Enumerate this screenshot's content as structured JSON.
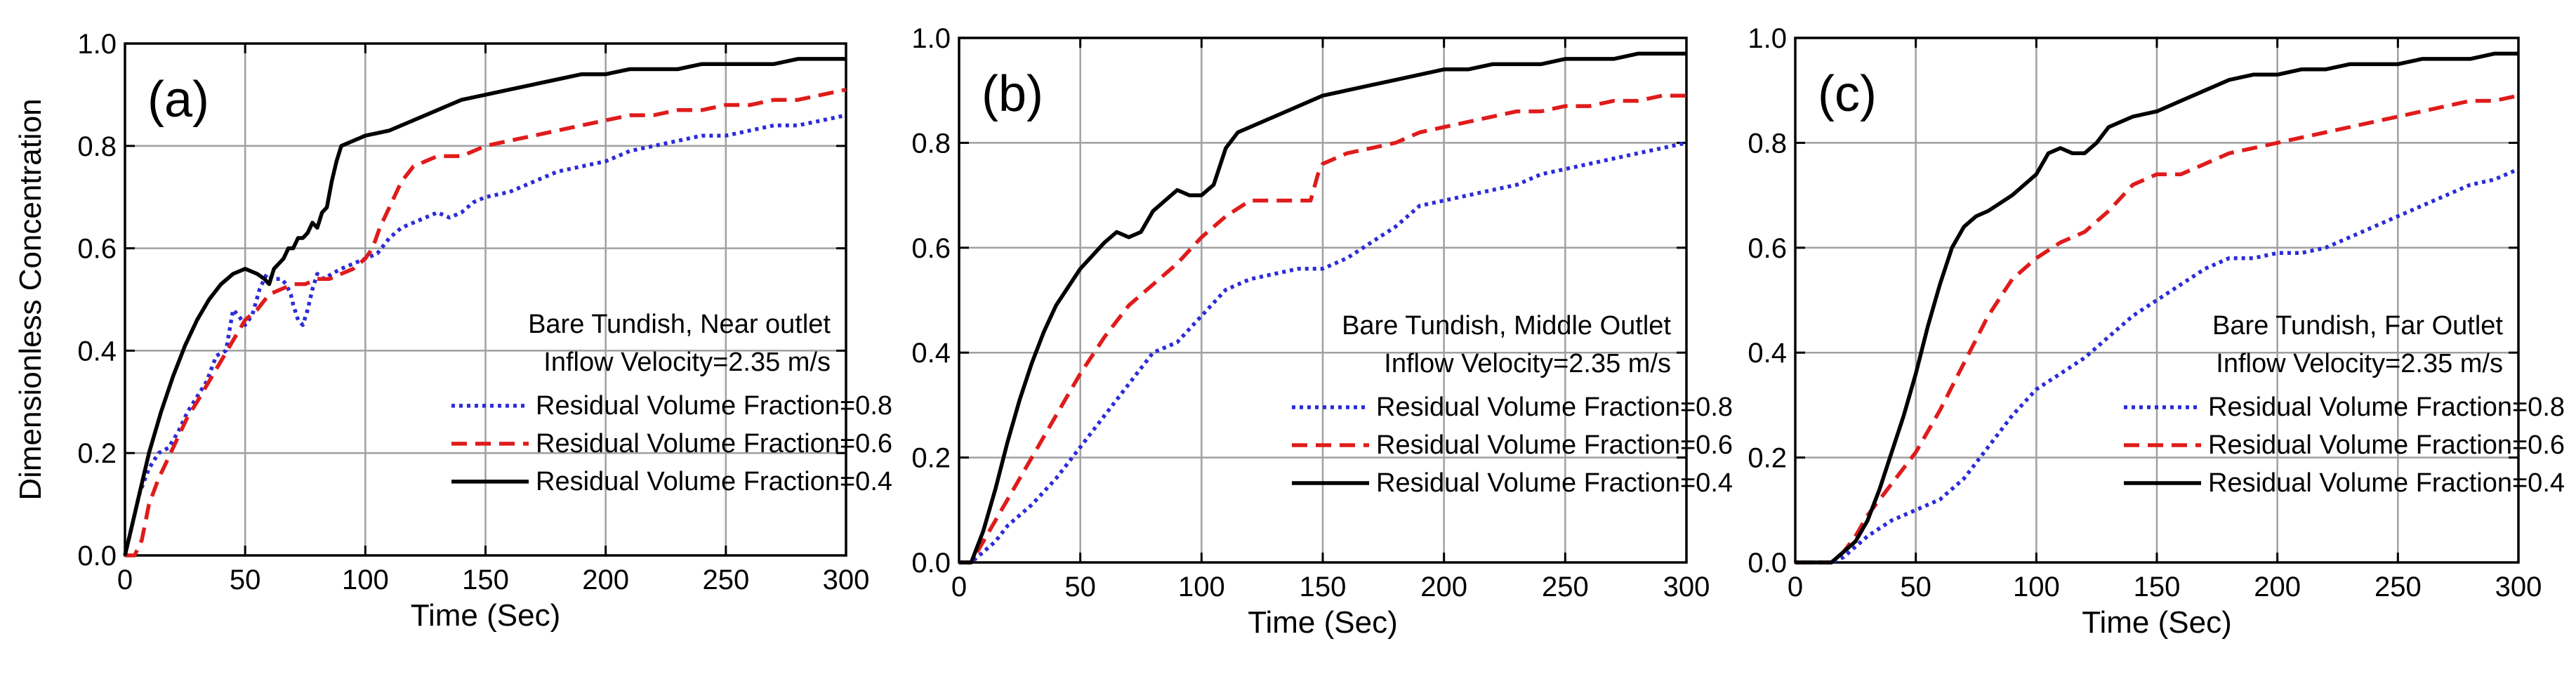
{
  "chart_data": [
    {
      "type": "line",
      "panel_label": "(a)",
      "xlabel": "Time (Sec)",
      "ylabel": "Dimensionless Concentration",
      "xlim": [
        0,
        300
      ],
      "ylim": [
        0,
        1.0
      ],
      "xticks": [
        "0",
        "50",
        "100",
        "150",
        "200",
        "250",
        "300"
      ],
      "yticks": [
        "0.0",
        "0.2",
        "0.4",
        "0.6",
        "0.8",
        "1.0"
      ],
      "annotation_lines": [
        "Bare Tundish, Near outlet",
        "Inflow Velocity=2.35 m/s"
      ],
      "series": [
        {
          "name": "Residual Volume Fraction=0.8",
          "color": "#2b2bd9",
          "style": "dotted",
          "x": [
            0,
            3,
            6,
            10,
            14,
            18,
            22,
            26,
            30,
            34,
            38,
            42,
            45,
            47,
            50,
            53,
            56,
            59,
            62,
            65,
            67,
            69,
            70,
            72,
            74,
            76,
            78,
            80,
            83,
            86,
            90,
            95,
            100,
            105,
            110,
            115,
            120,
            125,
            130,
            135,
            140,
            145,
            150,
            160,
            170,
            180,
            190,
            200,
            210,
            220,
            230,
            240,
            250,
            260,
            270,
            280,
            290,
            300
          ],
          "y": [
            0.0,
            0.06,
            0.12,
            0.17,
            0.2,
            0.21,
            0.24,
            0.28,
            0.31,
            0.34,
            0.39,
            0.4,
            0.48,
            0.47,
            0.45,
            0.47,
            0.52,
            0.55,
            0.54,
            0.54,
            0.53,
            0.51,
            0.49,
            0.46,
            0.45,
            0.48,
            0.52,
            0.55,
            0.54,
            0.55,
            0.56,
            0.57,
            0.58,
            0.59,
            0.62,
            0.64,
            0.65,
            0.66,
            0.67,
            0.66,
            0.67,
            0.69,
            0.7,
            0.71,
            0.73,
            0.75,
            0.76,
            0.77,
            0.79,
            0.8,
            0.81,
            0.82,
            0.82,
            0.83,
            0.84,
            0.84,
            0.85,
            0.86
          ]
        },
        {
          "name": "Residual Volume Fraction=0.6",
          "color": "#e01b1b",
          "style": "dashed",
          "x": [
            0,
            4,
            7,
            10,
            14,
            18,
            22,
            26,
            30,
            35,
            40,
            45,
            50,
            55,
            60,
            65,
            70,
            75,
            80,
            85,
            90,
            95,
            100,
            103,
            106,
            110,
            115,
            120,
            125,
            130,
            135,
            140,
            145,
            150,
            160,
            170,
            180,
            190,
            200,
            210,
            220,
            230,
            240,
            250,
            260,
            270,
            280,
            290,
            300
          ],
          "y": [
            0.0,
            0.0,
            0.03,
            0.1,
            0.15,
            0.19,
            0.23,
            0.27,
            0.3,
            0.34,
            0.38,
            0.42,
            0.46,
            0.48,
            0.51,
            0.52,
            0.53,
            0.53,
            0.54,
            0.54,
            0.55,
            0.56,
            0.58,
            0.6,
            0.64,
            0.68,
            0.73,
            0.76,
            0.77,
            0.78,
            0.78,
            0.78,
            0.79,
            0.8,
            0.81,
            0.82,
            0.83,
            0.84,
            0.85,
            0.86,
            0.86,
            0.87,
            0.87,
            0.88,
            0.88,
            0.89,
            0.89,
            0.9,
            0.91
          ]
        },
        {
          "name": "Residual Volume Fraction=0.4",
          "color": "#000000",
          "style": "solid",
          "x": [
            0,
            3,
            6,
            10,
            15,
            20,
            25,
            30,
            35,
            40,
            45,
            50,
            55,
            58,
            60,
            62,
            64,
            66,
            68,
            70,
            72,
            74,
            76,
            78,
            80,
            82,
            84,
            86,
            88,
            90,
            95,
            100,
            110,
            120,
            130,
            140,
            150,
            160,
            170,
            180,
            190,
            200,
            210,
            220,
            230,
            240,
            250,
            260,
            270,
            280,
            290,
            300
          ],
          "y": [
            0.0,
            0.06,
            0.12,
            0.2,
            0.28,
            0.35,
            0.41,
            0.46,
            0.5,
            0.53,
            0.55,
            0.56,
            0.55,
            0.54,
            0.53,
            0.56,
            0.57,
            0.58,
            0.6,
            0.6,
            0.62,
            0.62,
            0.63,
            0.65,
            0.64,
            0.67,
            0.68,
            0.73,
            0.77,
            0.8,
            0.81,
            0.82,
            0.83,
            0.85,
            0.87,
            0.89,
            0.9,
            0.91,
            0.92,
            0.93,
            0.94,
            0.94,
            0.95,
            0.95,
            0.95,
            0.96,
            0.96,
            0.96,
            0.96,
            0.97,
            0.97,
            0.97
          ]
        }
      ]
    },
    {
      "type": "line",
      "panel_label": "(b)",
      "xlabel": "Time (Sec)",
      "ylabel": "",
      "xlim": [
        0,
        300
      ],
      "ylim": [
        0,
        1.0
      ],
      "xticks": [
        "0",
        "50",
        "100",
        "150",
        "200",
        "250",
        "300"
      ],
      "yticks": [
        "0.0",
        "0.2",
        "0.4",
        "0.6",
        "0.8",
        "1.0"
      ],
      "annotation_lines": [
        "Bare Tundish, Middle Outlet",
        "Inflow Velocity=2.35 m/s"
      ],
      "series": [
        {
          "name": "Residual Volume Fraction=0.8",
          "color": "#2b2bd9",
          "style": "dotted",
          "x": [
            0,
            5,
            10,
            15,
            20,
            25,
            30,
            40,
            50,
            60,
            70,
            80,
            90,
            100,
            110,
            120,
            130,
            140,
            150,
            160,
            170,
            180,
            190,
            200,
            210,
            220,
            230,
            240,
            250,
            260,
            270,
            280,
            290,
            300
          ],
          "y": [
            0.0,
            0.0,
            0.02,
            0.04,
            0.07,
            0.09,
            0.11,
            0.16,
            0.22,
            0.28,
            0.34,
            0.4,
            0.42,
            0.47,
            0.52,
            0.54,
            0.55,
            0.56,
            0.56,
            0.58,
            0.61,
            0.64,
            0.68,
            0.69,
            0.7,
            0.71,
            0.72,
            0.74,
            0.75,
            0.76,
            0.77,
            0.78,
            0.79,
            0.8
          ]
        },
        {
          "name": "Residual Volume Fraction=0.6",
          "color": "#e01b1b",
          "style": "dashed",
          "x": [
            0,
            5,
            10,
            15,
            20,
            25,
            30,
            40,
            50,
            60,
            70,
            80,
            90,
            100,
            110,
            120,
            130,
            140,
            145,
            148,
            150,
            160,
            170,
            180,
            190,
            200,
            210,
            220,
            230,
            240,
            250,
            260,
            270,
            280,
            290,
            300
          ],
          "y": [
            0.0,
            0.0,
            0.04,
            0.08,
            0.12,
            0.16,
            0.2,
            0.28,
            0.36,
            0.43,
            0.49,
            0.53,
            0.57,
            0.62,
            0.66,
            0.69,
            0.69,
            0.69,
            0.69,
            0.74,
            0.76,
            0.78,
            0.79,
            0.8,
            0.82,
            0.83,
            0.84,
            0.85,
            0.86,
            0.86,
            0.87,
            0.87,
            0.88,
            0.88,
            0.89,
            0.89
          ]
        },
        {
          "name": "Residual Volume Fraction=0.4",
          "color": "#000000",
          "style": "solid",
          "x": [
            0,
            5,
            10,
            15,
            20,
            25,
            30,
            35,
            40,
            50,
            60,
            65,
            70,
            75,
            80,
            85,
            90,
            95,
            100,
            105,
            110,
            115,
            120,
            130,
            140,
            150,
            160,
            170,
            180,
            190,
            200,
            210,
            220,
            230,
            240,
            250,
            260,
            270,
            280,
            290,
            300
          ],
          "y": [
            0.0,
            0.0,
            0.06,
            0.14,
            0.23,
            0.31,
            0.38,
            0.44,
            0.49,
            0.56,
            0.61,
            0.63,
            0.62,
            0.63,
            0.67,
            0.69,
            0.71,
            0.7,
            0.7,
            0.72,
            0.79,
            0.82,
            0.83,
            0.85,
            0.87,
            0.89,
            0.9,
            0.91,
            0.92,
            0.93,
            0.94,
            0.94,
            0.95,
            0.95,
            0.95,
            0.96,
            0.96,
            0.96,
            0.97,
            0.97,
            0.97
          ]
        }
      ]
    },
    {
      "type": "line",
      "panel_label": "(c)",
      "xlabel": "Time (Sec)",
      "ylabel": "",
      "xlim": [
        0,
        300
      ],
      "ylim": [
        0,
        1.0
      ],
      "xticks": [
        "0",
        "50",
        "100",
        "150",
        "200",
        "250",
        "300"
      ],
      "yticks": [
        "0.0",
        "0.2",
        "0.4",
        "0.6",
        "0.8",
        "1.0"
      ],
      "annotation_lines": [
        "Bare Tundish, Far Outlet",
        "Inflow Velocity=2.35 m/s"
      ],
      "series": [
        {
          "name": "Residual Volume Fraction=0.8",
          "color": "#2b2bd9",
          "style": "dotted",
          "x": [
            0,
            15,
            20,
            25,
            30,
            40,
            50,
            60,
            70,
            80,
            90,
            100,
            110,
            120,
            130,
            140,
            150,
            160,
            170,
            180,
            190,
            200,
            210,
            220,
            230,
            240,
            250,
            260,
            270,
            280,
            290,
            300
          ],
          "y": [
            0.0,
            0.0,
            0.01,
            0.03,
            0.05,
            0.08,
            0.1,
            0.12,
            0.16,
            0.22,
            0.28,
            0.33,
            0.36,
            0.39,
            0.43,
            0.47,
            0.5,
            0.53,
            0.56,
            0.58,
            0.58,
            0.59,
            0.59,
            0.6,
            0.62,
            0.64,
            0.66,
            0.68,
            0.7,
            0.72,
            0.73,
            0.75
          ]
        },
        {
          "name": "Residual Volume Fraction=0.6",
          "color": "#e01b1b",
          "style": "dashed",
          "x": [
            0,
            15,
            20,
            25,
            30,
            40,
            50,
            60,
            70,
            80,
            90,
            100,
            110,
            120,
            130,
            140,
            150,
            160,
            170,
            180,
            190,
            200,
            210,
            220,
            230,
            240,
            250,
            260,
            270,
            280,
            290,
            300
          ],
          "y": [
            0.0,
            0.0,
            0.02,
            0.05,
            0.09,
            0.15,
            0.21,
            0.29,
            0.38,
            0.47,
            0.54,
            0.58,
            0.61,
            0.63,
            0.67,
            0.72,
            0.74,
            0.74,
            0.76,
            0.78,
            0.79,
            0.8,
            0.81,
            0.82,
            0.83,
            0.84,
            0.85,
            0.86,
            0.87,
            0.88,
            0.88,
            0.89
          ]
        },
        {
          "name": "Residual Volume Fraction=0.4",
          "color": "#000000",
          "style": "solid",
          "x": [
            0,
            15,
            20,
            25,
            30,
            35,
            40,
            45,
            50,
            55,
            60,
            65,
            70,
            75,
            80,
            90,
            100,
            105,
            110,
            115,
            120,
            125,
            130,
            140,
            150,
            160,
            170,
            180,
            190,
            200,
            210,
            220,
            230,
            240,
            250,
            260,
            270,
            280,
            290,
            300
          ],
          "y": [
            0.0,
            0.0,
            0.02,
            0.04,
            0.08,
            0.14,
            0.21,
            0.28,
            0.36,
            0.45,
            0.53,
            0.6,
            0.64,
            0.66,
            0.67,
            0.7,
            0.74,
            0.78,
            0.79,
            0.78,
            0.78,
            0.8,
            0.83,
            0.85,
            0.86,
            0.88,
            0.9,
            0.92,
            0.93,
            0.93,
            0.94,
            0.94,
            0.95,
            0.95,
            0.95,
            0.96,
            0.96,
            0.96,
            0.97,
            0.97
          ]
        }
      ]
    }
  ]
}
